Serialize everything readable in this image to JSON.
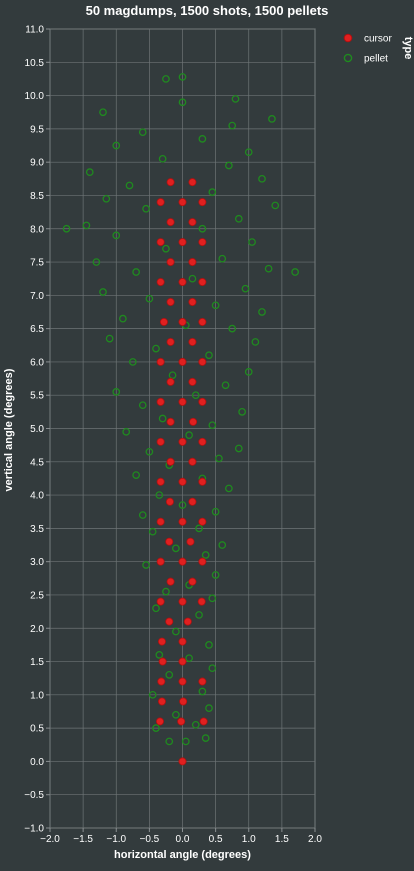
{
  "chart_data": {
    "type": "scatter",
    "title": "50 magdumps, 1500 shots, 1500 pellets",
    "xlabel": "horizontal angle (degrees)",
    "ylabel": "vertical angle (degrees)",
    "xlim": [
      -2.0,
      2.0
    ],
    "ylim": [
      -1.0,
      11.0
    ],
    "x_ticks": [
      "−2.0",
      "−1.5",
      "−1.0",
      "−0.5",
      "0.0",
      "0.5",
      "1.0",
      "1.5",
      "2.0"
    ],
    "x_tick_values": [
      -2.0,
      -1.5,
      -1.0,
      -0.5,
      0.0,
      0.5,
      1.0,
      1.5,
      2.0
    ],
    "y_ticks": [
      "−1.0",
      "−0.5",
      "0.0",
      "0.5",
      "1.0",
      "1.5",
      "2.0",
      "2.5",
      "3.0",
      "3.5",
      "4.0",
      "4.5",
      "5.0",
      "5.5",
      "6.0",
      "6.5",
      "7.0",
      "7.5",
      "8.0",
      "8.5",
      "9.0",
      "9.5",
      "10.0",
      "10.5",
      "11.0"
    ],
    "y_tick_values": [
      -1.0,
      -0.5,
      0.0,
      0.5,
      1.0,
      1.5,
      2.0,
      2.5,
      3.0,
      3.5,
      4.0,
      4.5,
      5.0,
      5.5,
      6.0,
      6.5,
      7.0,
      7.5,
      8.0,
      8.5,
      9.0,
      9.5,
      10.0,
      10.5,
      11.0
    ],
    "grid": true,
    "legend": {
      "title": "type",
      "placement": "right",
      "entries": [
        {
          "name": "cursor",
          "color": "#e02020"
        },
        {
          "name": "pellet",
          "color": "#1f8a1f"
        }
      ]
    },
    "series": [
      {
        "name": "cursor",
        "color": "#e02020",
        "marker": "filled-circle",
        "points": [
          [
            0.0,
            0.0
          ],
          [
            -0.34,
            0.6
          ],
          [
            -0.02,
            0.6
          ],
          [
            0.32,
            0.6
          ],
          [
            -0.31,
            0.9
          ],
          [
            0.01,
            0.9
          ],
          [
            -0.32,
            1.2
          ],
          [
            0.0,
            1.2
          ],
          [
            0.3,
            1.2
          ],
          [
            -0.3,
            1.5
          ],
          [
            0.0,
            1.5
          ],
          [
            -0.31,
            1.8
          ],
          [
            0.0,
            1.8
          ],
          [
            -0.2,
            2.1
          ],
          [
            0.08,
            2.1
          ],
          [
            -0.33,
            2.4
          ],
          [
            0.0,
            2.4
          ],
          [
            0.29,
            2.4
          ],
          [
            -0.18,
            2.7
          ],
          [
            0.15,
            2.7
          ],
          [
            -0.33,
            3.0
          ],
          [
            0.0,
            3.0
          ],
          [
            0.3,
            3.0
          ],
          [
            -0.2,
            3.3
          ],
          [
            0.12,
            3.3
          ],
          [
            -0.33,
            3.6
          ],
          [
            0.0,
            3.6
          ],
          [
            0.3,
            3.6
          ],
          [
            -0.19,
            3.9
          ],
          [
            0.15,
            3.9
          ],
          [
            -0.33,
            4.2
          ],
          [
            0.0,
            4.2
          ],
          [
            0.3,
            4.2
          ],
          [
            -0.18,
            4.5
          ],
          [
            0.15,
            4.5
          ],
          [
            -0.33,
            4.8
          ],
          [
            0.0,
            4.8
          ],
          [
            0.3,
            4.8
          ],
          [
            -0.18,
            5.1
          ],
          [
            0.16,
            5.1
          ],
          [
            -0.33,
            5.4
          ],
          [
            0.0,
            5.4
          ],
          [
            0.3,
            5.4
          ],
          [
            -0.18,
            5.7
          ],
          [
            0.15,
            5.7
          ],
          [
            -0.33,
            6.0
          ],
          [
            0.0,
            6.0
          ],
          [
            0.3,
            6.0
          ],
          [
            -0.18,
            6.3
          ],
          [
            0.15,
            6.3
          ],
          [
            -0.28,
            6.6
          ],
          [
            0.0,
            6.6
          ],
          [
            0.3,
            6.6
          ],
          [
            -0.18,
            6.9
          ],
          [
            0.15,
            6.9
          ],
          [
            -0.33,
            7.2
          ],
          [
            0.0,
            7.2
          ],
          [
            0.3,
            7.2
          ],
          [
            -0.18,
            7.5
          ],
          [
            0.15,
            7.5
          ],
          [
            -0.33,
            7.8
          ],
          [
            0.0,
            7.8
          ],
          [
            0.3,
            7.8
          ],
          [
            -0.18,
            8.1
          ],
          [
            0.15,
            8.1
          ],
          [
            -0.33,
            8.4
          ],
          [
            0.0,
            8.4
          ],
          [
            0.3,
            8.4
          ],
          [
            -0.18,
            8.7
          ],
          [
            0.15,
            8.7
          ]
        ]
      },
      {
        "name": "pellet",
        "color": "#1f8a1f",
        "marker": "hollow-circle",
        "points": [
          [
            0.0,
            0.0
          ],
          [
            -0.2,
            0.3
          ],
          [
            0.05,
            0.3
          ],
          [
            0.35,
            0.35
          ],
          [
            -0.4,
            0.5
          ],
          [
            0.2,
            0.55
          ],
          [
            -0.1,
            0.7
          ],
          [
            0.4,
            0.8
          ],
          [
            -0.45,
            1.0
          ],
          [
            0.3,
            1.05
          ],
          [
            -0.2,
            1.3
          ],
          [
            0.45,
            1.4
          ],
          [
            0.1,
            1.55
          ],
          [
            -0.35,
            1.6
          ],
          [
            0.4,
            1.75
          ],
          [
            -0.1,
            1.95
          ],
          [
            0.25,
            2.2
          ],
          [
            -0.4,
            2.3
          ],
          [
            0.45,
            2.45
          ],
          [
            -0.25,
            2.55
          ],
          [
            0.1,
            2.65
          ],
          [
            0.5,
            2.8
          ],
          [
            -0.55,
            2.95
          ],
          [
            0.35,
            3.1
          ],
          [
            -0.1,
            3.2
          ],
          [
            0.6,
            3.25
          ],
          [
            -0.45,
            3.45
          ],
          [
            0.25,
            3.5
          ],
          [
            -0.6,
            3.7
          ],
          [
            0.5,
            3.75
          ],
          [
            0.0,
            3.85
          ],
          [
            -0.35,
            4.0
          ],
          [
            0.7,
            4.1
          ],
          [
            0.3,
            4.25
          ],
          [
            -0.7,
            4.3
          ],
          [
            -0.2,
            4.45
          ],
          [
            0.55,
            4.55
          ],
          [
            -0.5,
            4.65
          ],
          [
            0.85,
            4.7
          ],
          [
            0.1,
            4.9
          ],
          [
            -0.85,
            4.95
          ],
          [
            0.45,
            5.05
          ],
          [
            -0.3,
            5.15
          ],
          [
            0.9,
            5.25
          ],
          [
            -0.6,
            5.35
          ],
          [
            0.2,
            5.5
          ],
          [
            -1.0,
            5.55
          ],
          [
            0.65,
            5.65
          ],
          [
            -0.15,
            5.8
          ],
          [
            1.0,
            5.85
          ],
          [
            -0.75,
            6.0
          ],
          [
            0.4,
            6.1
          ],
          [
            -0.4,
            6.2
          ],
          [
            1.1,
            6.3
          ],
          [
            -1.1,
            6.35
          ],
          [
            0.75,
            6.5
          ],
          [
            0.05,
            6.55
          ],
          [
            -0.9,
            6.65
          ],
          [
            1.2,
            6.75
          ],
          [
            0.5,
            6.85
          ],
          [
            -0.5,
            6.95
          ],
          [
            -1.2,
            7.05
          ],
          [
            0.95,
            7.1
          ],
          [
            0.15,
            7.25
          ],
          [
            -0.7,
            7.35
          ],
          [
            1.3,
            7.4
          ],
          [
            -1.3,
            7.5
          ],
          [
            0.6,
            7.55
          ],
          [
            -0.25,
            7.7
          ],
          [
            1.05,
            7.8
          ],
          [
            -1.0,
            7.9
          ],
          [
            0.3,
            8.0
          ],
          [
            -1.45,
            8.05
          ],
          [
            0.85,
            8.15
          ],
          [
            -0.55,
            8.3
          ],
          [
            1.4,
            8.35
          ],
          [
            -1.15,
            8.45
          ],
          [
            0.45,
            8.55
          ],
          [
            -0.8,
            8.65
          ],
          [
            1.2,
            8.75
          ],
          [
            -1.4,
            8.85
          ],
          [
            0.7,
            8.95
          ],
          [
            -0.3,
            9.05
          ],
          [
            1.0,
            9.15
          ],
          [
            -1.0,
            9.25
          ],
          [
            0.3,
            9.35
          ],
          [
            -0.6,
            9.45
          ],
          [
            0.75,
            9.55
          ],
          [
            -1.2,
            9.75
          ],
          [
            0.0,
            9.9
          ],
          [
            0.8,
            9.95
          ],
          [
            -0.25,
            10.25
          ],
          [
            0.0,
            10.28
          ],
          [
            1.35,
            9.65
          ],
          [
            -1.75,
            8.0
          ],
          [
            1.7,
            7.35
          ]
        ]
      }
    ]
  }
}
